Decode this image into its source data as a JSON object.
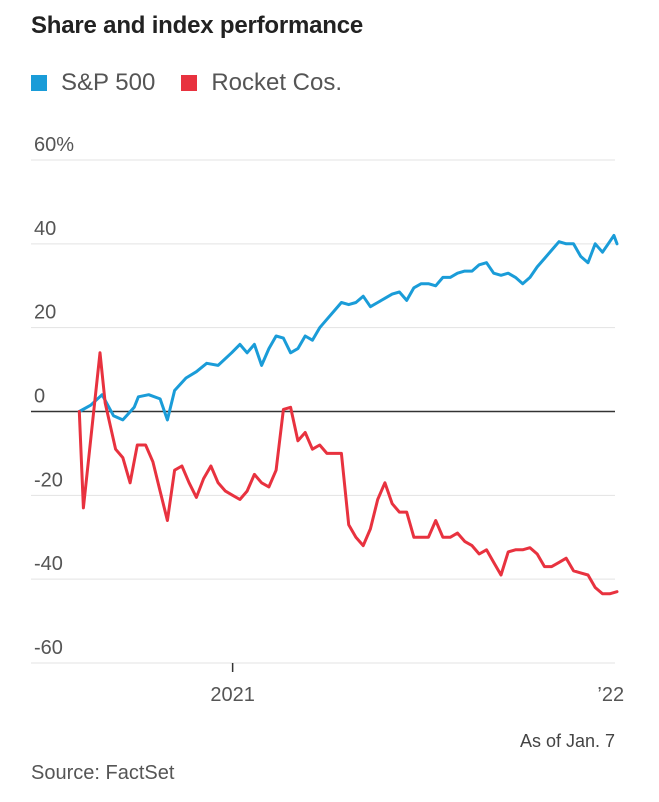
{
  "chart_data": {
    "type": "line",
    "title": "Share and index performance",
    "ylim": [
      -60,
      60
    ],
    "yticks": [
      60,
      40,
      20,
      0,
      -20,
      -40,
      -60
    ],
    "ytick_labels": [
      "60%",
      "40",
      "20",
      "0",
      "-20",
      "-40",
      "-60"
    ],
    "xlim": [
      "2020-07-01",
      "2022-01-07"
    ],
    "xticks": [
      {
        "x": "2021-01-01",
        "label": "2021"
      },
      {
        "x": "2022-01-01",
        "label": "’22"
      }
    ],
    "legend_position": "top-left",
    "grid": true,
    "series": [
      {
        "name": "S&P 500",
        "color": "#1a9cd8",
        "points": [
          [
            "2020-08-06",
            0
          ],
          [
            "2020-08-17",
            1.5
          ],
          [
            "2020-08-28",
            4
          ],
          [
            "2020-09-08",
            -1
          ],
          [
            "2020-09-17",
            -2
          ],
          [
            "2020-09-28",
            1
          ],
          [
            "2020-10-02",
            3.5
          ],
          [
            "2020-10-12",
            4
          ],
          [
            "2020-10-23",
            3
          ],
          [
            "2020-10-30",
            -2
          ],
          [
            "2020-11-06",
            5
          ],
          [
            "2020-11-17",
            8
          ],
          [
            "2020-11-27",
            9.5
          ],
          [
            "2020-12-07",
            11.5
          ],
          [
            "2020-12-18",
            11
          ],
          [
            "2020-12-31",
            14
          ],
          [
            "2021-01-08",
            16
          ],
          [
            "2021-01-15",
            14
          ],
          [
            "2021-01-22",
            16
          ],
          [
            "2021-01-29",
            11
          ],
          [
            "2021-02-05",
            15
          ],
          [
            "2021-02-12",
            18
          ],
          [
            "2021-02-19",
            17.5
          ],
          [
            "2021-02-26",
            14
          ],
          [
            "2021-03-05",
            15
          ],
          [
            "2021-03-12",
            18
          ],
          [
            "2021-03-19",
            17
          ],
          [
            "2021-03-26",
            20
          ],
          [
            "2021-04-02",
            22
          ],
          [
            "2021-04-09",
            24
          ],
          [
            "2021-04-16",
            26
          ],
          [
            "2021-04-23",
            25.5
          ],
          [
            "2021-04-30",
            26
          ],
          [
            "2021-05-07",
            27.5
          ],
          [
            "2021-05-14",
            25
          ],
          [
            "2021-05-21",
            26
          ],
          [
            "2021-05-28",
            27
          ],
          [
            "2021-06-04",
            28
          ],
          [
            "2021-06-11",
            28.5
          ],
          [
            "2021-06-18",
            26.5
          ],
          [
            "2021-06-25",
            29.5
          ],
          [
            "2021-07-02",
            30.5
          ],
          [
            "2021-07-09",
            30.5
          ],
          [
            "2021-07-16",
            30
          ],
          [
            "2021-07-23",
            32
          ],
          [
            "2021-07-30",
            32
          ],
          [
            "2021-08-06",
            33
          ],
          [
            "2021-08-13",
            33.5
          ],
          [
            "2021-08-20",
            33.5
          ],
          [
            "2021-08-27",
            35
          ],
          [
            "2021-09-03",
            35.5
          ],
          [
            "2021-09-10",
            33
          ],
          [
            "2021-09-17",
            32.5
          ],
          [
            "2021-09-24",
            33
          ],
          [
            "2021-10-01",
            32
          ],
          [
            "2021-10-08",
            30.5
          ],
          [
            "2021-10-15",
            32
          ],
          [
            "2021-10-22",
            34.5
          ],
          [
            "2021-10-29",
            36.5
          ],
          [
            "2021-11-05",
            38.5
          ],
          [
            "2021-11-12",
            40.5
          ],
          [
            "2021-11-19",
            40
          ],
          [
            "2021-11-26",
            40
          ],
          [
            "2021-12-03",
            37
          ],
          [
            "2021-12-10",
            35.5
          ],
          [
            "2021-12-17",
            40
          ],
          [
            "2021-12-24",
            38
          ],
          [
            "2021-12-31",
            40.5
          ],
          [
            "2022-01-04",
            42
          ],
          [
            "2022-01-07",
            40
          ]
        ]
      },
      {
        "name": "Rocket Cos.",
        "color": "#e8323f",
        "points": [
          [
            "2020-08-06",
            0
          ],
          [
            "2020-08-10",
            -23
          ],
          [
            "2020-08-19",
            -2
          ],
          [
            "2020-08-26",
            14
          ],
          [
            "2020-08-31",
            2
          ],
          [
            "2020-09-10",
            -9
          ],
          [
            "2020-09-17",
            -11
          ],
          [
            "2020-09-24",
            -17
          ],
          [
            "2020-10-01",
            -8
          ],
          [
            "2020-10-09",
            -8
          ],
          [
            "2020-10-16",
            -12
          ],
          [
            "2020-10-23",
            -19
          ],
          [
            "2020-10-30",
            -26
          ],
          [
            "2020-11-06",
            -14
          ],
          [
            "2020-11-13",
            -13
          ],
          [
            "2020-11-20",
            -17
          ],
          [
            "2020-11-27",
            -20.5
          ],
          [
            "2020-12-04",
            -16
          ],
          [
            "2020-12-11",
            -13
          ],
          [
            "2020-12-18",
            -17
          ],
          [
            "2020-12-25",
            -19
          ],
          [
            "2021-01-01",
            -20
          ],
          [
            "2021-01-08",
            -21
          ],
          [
            "2021-01-15",
            -19
          ],
          [
            "2021-01-22",
            -15
          ],
          [
            "2021-01-29",
            -17
          ],
          [
            "2021-02-05",
            -18
          ],
          [
            "2021-02-12",
            -14
          ],
          [
            "2021-02-19",
            0.5
          ],
          [
            "2021-02-26",
            1
          ],
          [
            "2021-03-05",
            -7
          ],
          [
            "2021-03-12",
            -5
          ],
          [
            "2021-03-19",
            -9
          ],
          [
            "2021-03-26",
            -8
          ],
          [
            "2021-04-02",
            -10
          ],
          [
            "2021-04-09",
            -10
          ],
          [
            "2021-04-16",
            -10
          ],
          [
            "2021-04-23",
            -27
          ],
          [
            "2021-04-30",
            -30
          ],
          [
            "2021-05-07",
            -32
          ],
          [
            "2021-05-14",
            -28
          ],
          [
            "2021-05-21",
            -21
          ],
          [
            "2021-05-28",
            -17
          ],
          [
            "2021-06-04",
            -22
          ],
          [
            "2021-06-11",
            -24
          ],
          [
            "2021-06-18",
            -24
          ],
          [
            "2021-06-25",
            -30
          ],
          [
            "2021-07-02",
            -30
          ],
          [
            "2021-07-09",
            -30
          ],
          [
            "2021-07-16",
            -26
          ],
          [
            "2021-07-23",
            -30
          ],
          [
            "2021-07-30",
            -30
          ],
          [
            "2021-08-06",
            -29
          ],
          [
            "2021-08-13",
            -31
          ],
          [
            "2021-08-20",
            -32
          ],
          [
            "2021-08-27",
            -34
          ],
          [
            "2021-09-03",
            -33
          ],
          [
            "2021-09-10",
            -36
          ],
          [
            "2021-09-17",
            -39
          ],
          [
            "2021-09-24",
            -33.5
          ],
          [
            "2021-10-01",
            -33
          ],
          [
            "2021-10-08",
            -33
          ],
          [
            "2021-10-15",
            -32.5
          ],
          [
            "2021-10-22",
            -34
          ],
          [
            "2021-10-29",
            -37
          ],
          [
            "2021-11-05",
            -37
          ],
          [
            "2021-11-12",
            -36
          ],
          [
            "2021-11-19",
            -35
          ],
          [
            "2021-11-26",
            -38
          ],
          [
            "2021-12-03",
            -38.5
          ],
          [
            "2021-12-10",
            -39
          ],
          [
            "2021-12-17",
            -42
          ],
          [
            "2021-12-24",
            -43.5
          ],
          [
            "2021-12-31",
            -43.5
          ],
          [
            "2022-01-07",
            -43
          ]
        ]
      }
    ]
  },
  "footer": {
    "as_of": "As of Jan. 7",
    "source": "Source: FactSet"
  }
}
